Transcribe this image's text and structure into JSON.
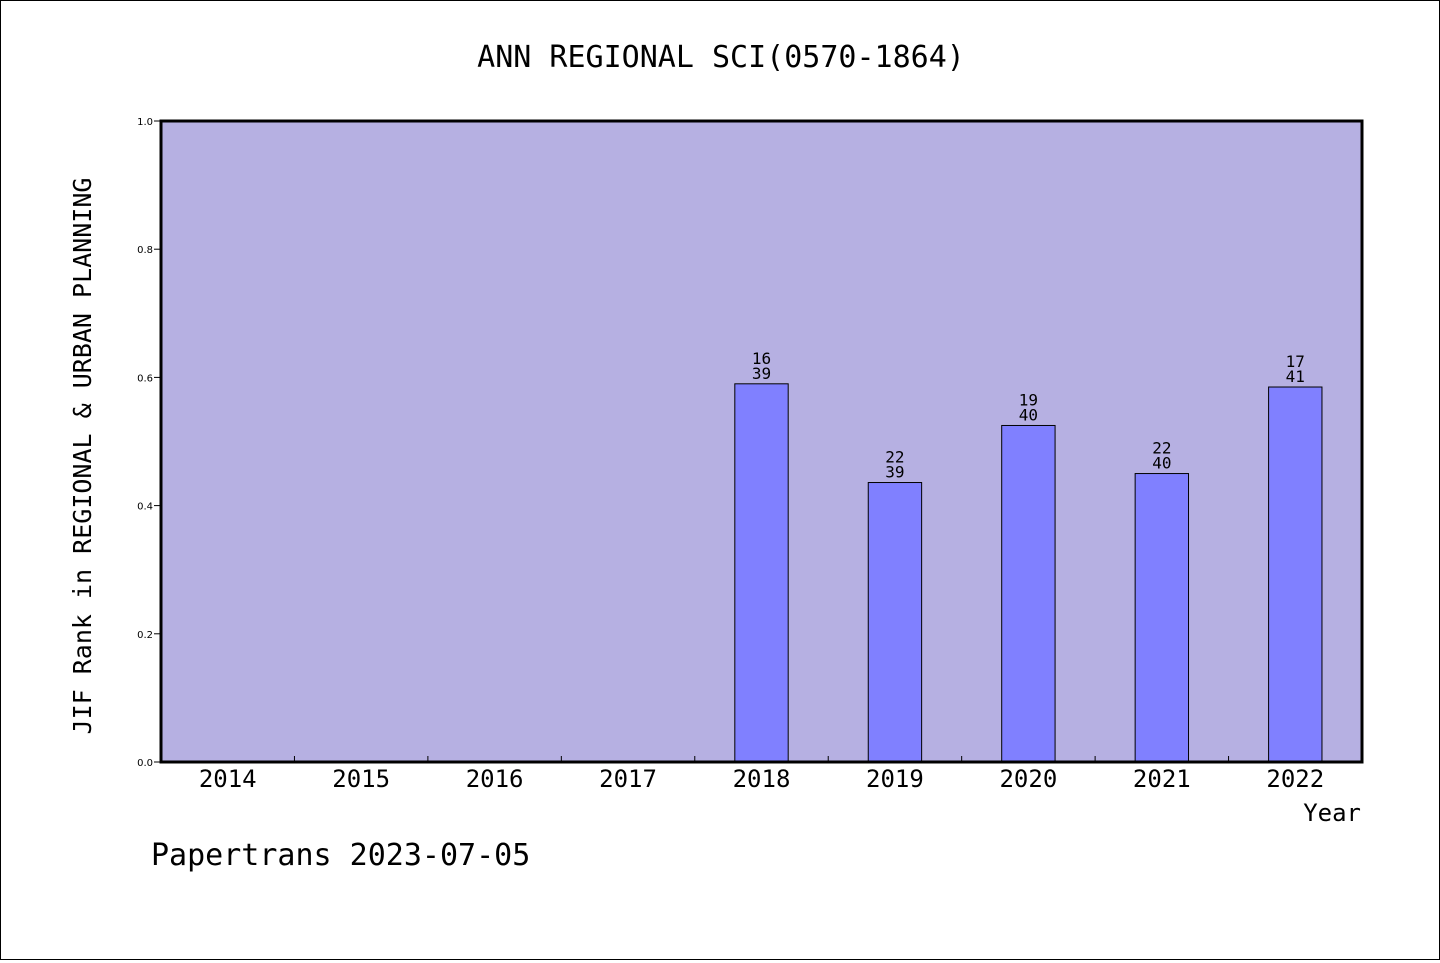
{
  "chart_data": {
    "type": "bar",
    "title": "ANN REGIONAL SCI(0570-1864)",
    "xlabel": "Year",
    "ylabel": "JIF Rank in REGIONAL & URBAN PLANNING",
    "ylim": [
      0,
      1.0
    ],
    "yticks": [
      "0.0",
      "0.2",
      "0.4",
      "0.6",
      "0.8",
      "1.0"
    ],
    "categories": [
      "2014",
      "2015",
      "2016",
      "2017",
      "2018",
      "2019",
      "2020",
      "2021",
      "2022"
    ],
    "values": [
      null,
      null,
      null,
      null,
      0.59,
      0.436,
      0.525,
      0.45,
      0.585
    ],
    "rank_labels": [
      null,
      null,
      null,
      null,
      {
        "rank": "16",
        "total": "39"
      },
      {
        "rank": "22",
        "total": "39"
      },
      {
        "rank": "19",
        "total": "40"
      },
      {
        "rank": "22",
        "total": "40"
      },
      {
        "rank": "17",
        "total": "41"
      }
    ],
    "grid": false,
    "colors": {
      "plot_background": "#b6b0e2",
      "bar_fill": "#8080ff",
      "bar_stroke": "#000000"
    }
  },
  "footer": "Papertrans 2023-07-05"
}
